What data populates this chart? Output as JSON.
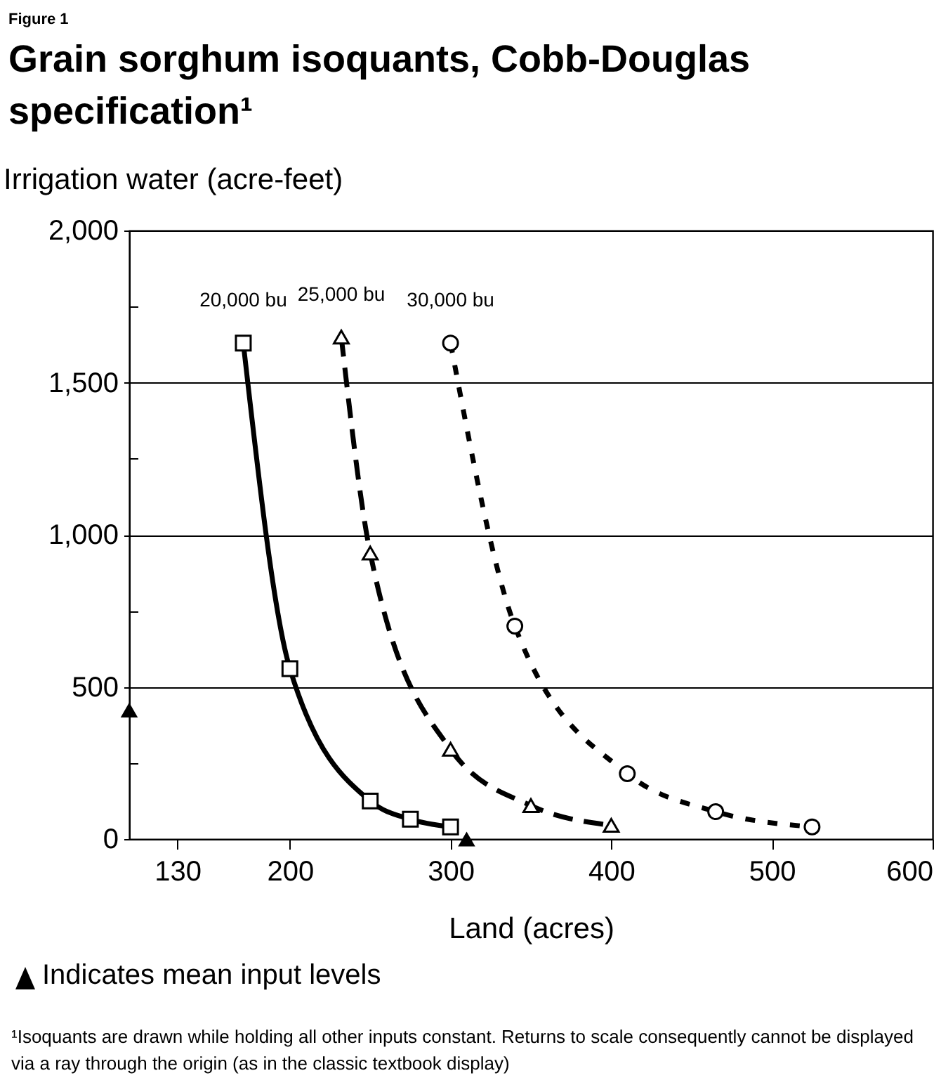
{
  "chart_data": {
    "type": "line",
    "subtitle": "Figure 1",
    "title": "Grain sorghum isoquants, Cobb-Douglas specification¹",
    "ylabel": "Irrigation water (acre-feet)",
    "xlabel": "Land (acres)",
    "xlim": [
      100,
      600
    ],
    "xticks": [
      130,
      200,
      300,
      400,
      500,
      600
    ],
    "ylim": [
      0,
      2000
    ],
    "yticks": [
      0,
      {
        "value": 250,
        "label": null
      },
      500,
      {
        "value": 750,
        "label": null
      },
      {
        "value": 1000,
        "label": "1,000"
      },
      {
        "value": 1250,
        "label": null
      },
      {
        "value": 1500,
        "label": "1,500"
      },
      {
        "value": 1750,
        "label": null
      },
      {
        "value": 2000,
        "label": "2,000"
      }
    ],
    "grid": "y",
    "legend": false,
    "series": [
      {
        "name": "20,000 bu",
        "type": "line",
        "color": "#000000",
        "marker": "square",
        "line_style": "solid",
        "x": [
          171,
          200,
          250,
          275,
          300
        ],
        "values": [
          1630,
          560,
          125,
          65,
          40
        ]
      },
      {
        "name": "25,000 bu",
        "type": "line",
        "color": "#000000",
        "marker": "triangle",
        "line_style": "dashed",
        "x": [
          232,
          250,
          300,
          350,
          400
        ],
        "values": [
          1650,
          940,
          295,
          110,
          45
        ]
      },
      {
        "name": "30,000 bu",
        "type": "line",
        "color": "#000000",
        "marker": "circle",
        "line_style": "dotted",
        "x": [
          300,
          340,
          410,
          465,
          525
        ],
        "values": [
          1630,
          700,
          215,
          90,
          40
        ]
      },
      {
        "type": "scatter",
        "color": "#000000",
        "marker": "triangle",
        "x": [
          310,
          100
        ],
        "values": [
          0,
          424
        ]
      }
    ],
    "annotations": [
      "Indicates mean input levels",
      "¹Isoquants are drawn while holding all other inputs constant. Returns to scale consequently cannot be displayed via a ray through the origin (as in the classic textbook display)"
    ]
  }
}
